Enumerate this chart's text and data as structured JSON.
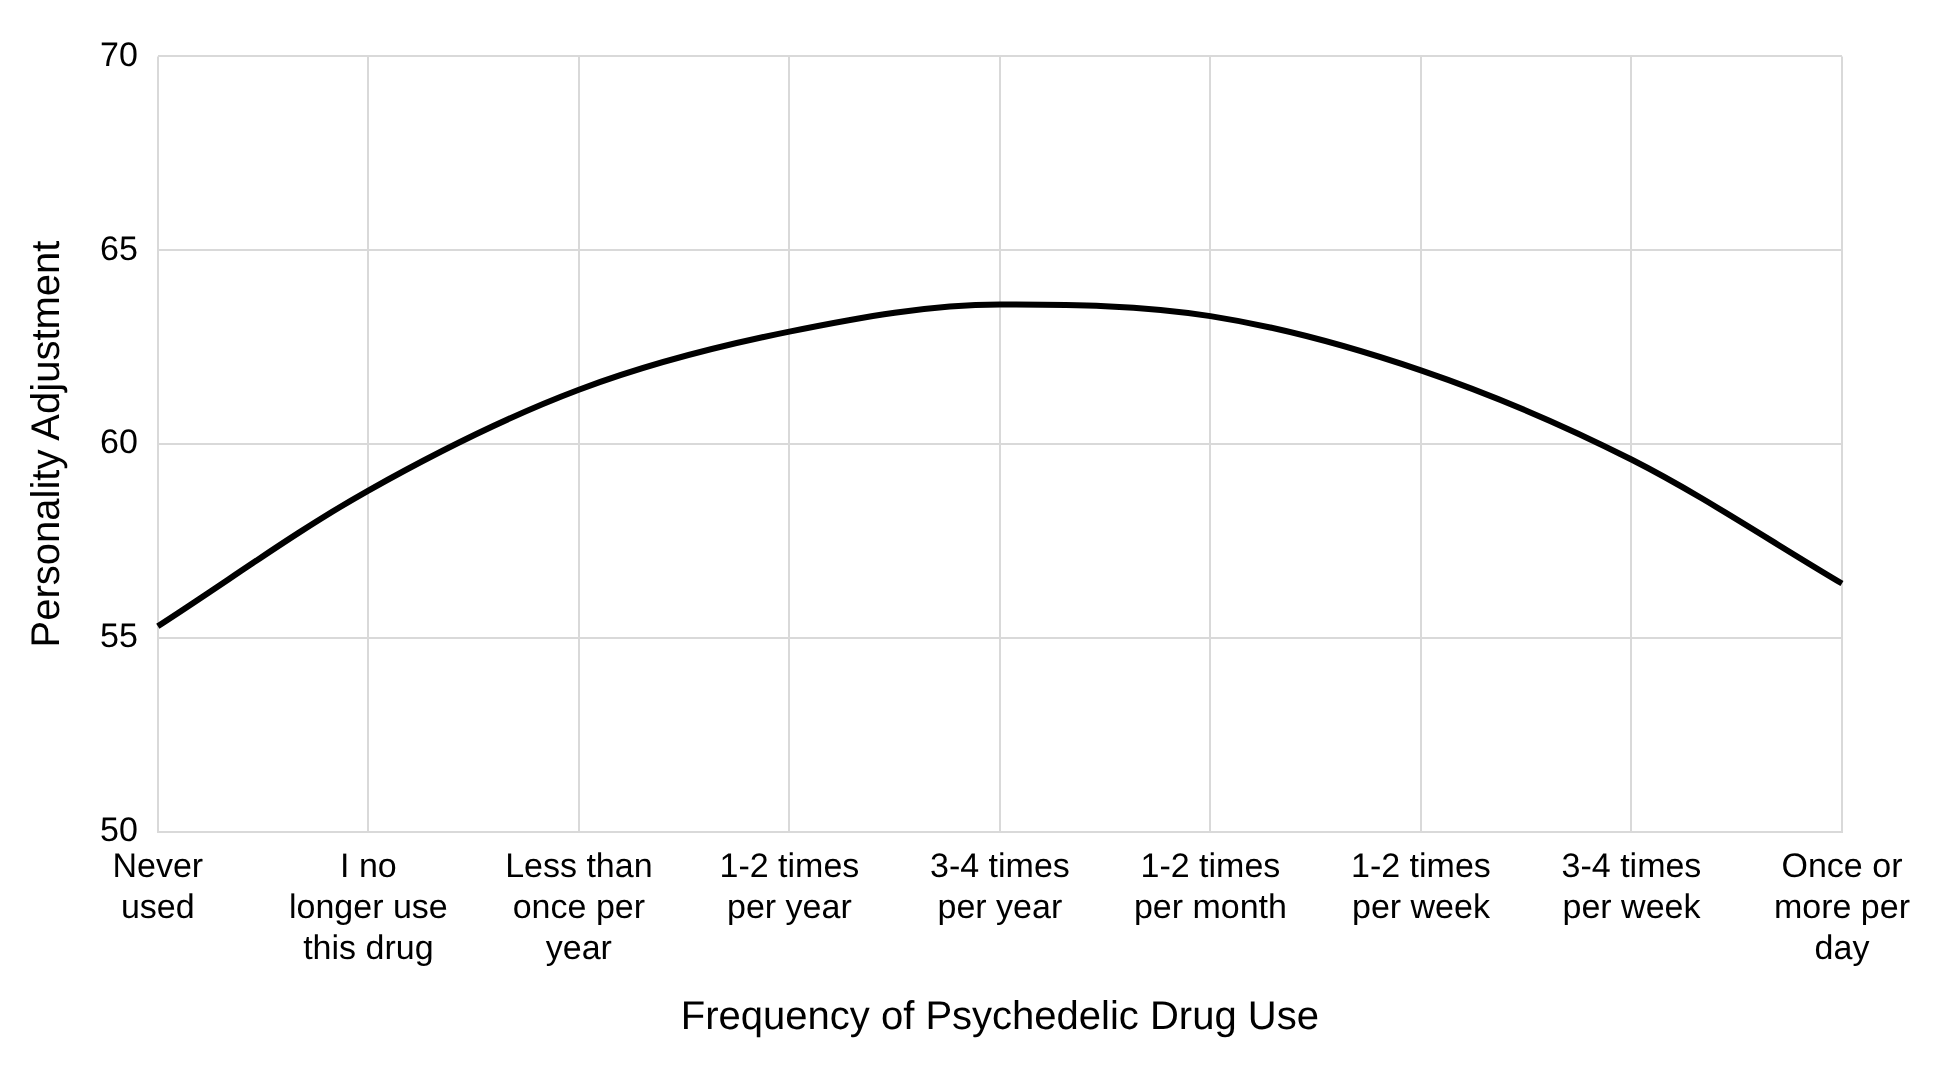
{
  "chart_data": {
    "type": "line",
    "xlabel": "Frequency of Psychedelic Drug Use",
    "ylabel": "Personality Adjustment",
    "categories": [
      "Never used",
      "I no longer use this drug",
      "Less than once per year",
      "1-2 times per year",
      "3-4 times per year",
      "1-2 times per month",
      "1-2 times per week",
      "3-4 times per week",
      "Once or more per day"
    ],
    "series": [
      {
        "color": "#000000",
        "values": [
          55.3,
          58.8,
          61.4,
          62.9,
          63.6,
          63.3,
          61.9,
          59.6,
          56.4
        ]
      }
    ],
    "ylim": [
      50,
      70
    ],
    "yticks": [
      50,
      55,
      60,
      65,
      70
    ],
    "grid": true,
    "legend": false,
    "marker": "none",
    "line_style": "solid"
  }
}
